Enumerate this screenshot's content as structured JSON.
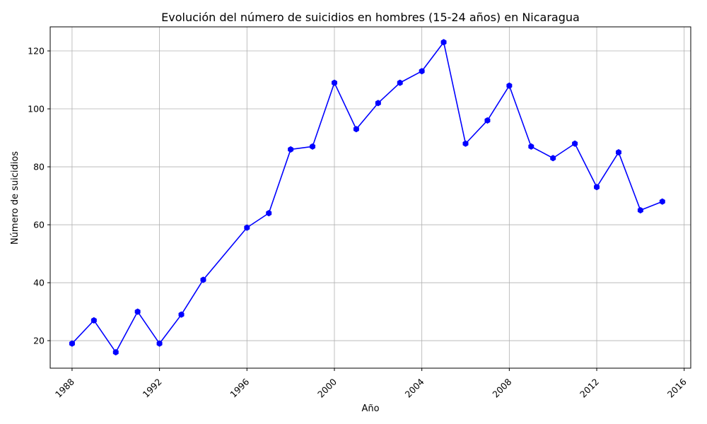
{
  "chart_data": {
    "type": "line",
    "title": "Evolución del número de suicidios en hombres (15-24 años) en Nicaragua",
    "xlabel": "Año",
    "ylabel": "Número de suicidios",
    "xlim": [
      1987.0,
      2016.3
    ],
    "ylim": [
      10.5,
      128.3
    ],
    "x_ticks": [
      1988,
      1992,
      1996,
      2000,
      2004,
      2008,
      2012,
      2016
    ],
    "y_ticks": [
      20,
      40,
      60,
      80,
      100,
      120
    ],
    "grid": true,
    "line_color": "#0000ff",
    "points": [
      {
        "x": 1988,
        "y": 19
      },
      {
        "x": 1989,
        "y": 27
      },
      {
        "x": 1990,
        "y": 16
      },
      {
        "x": 1991,
        "y": 30
      },
      {
        "x": 1992,
        "y": 19
      },
      {
        "x": 1993,
        "y": 29
      },
      {
        "x": 1994,
        "y": 41
      },
      {
        "x": 1996,
        "y": 59
      },
      {
        "x": 1997,
        "y": 64
      },
      {
        "x": 1998,
        "y": 86
      },
      {
        "x": 1999,
        "y": 87
      },
      {
        "x": 2000,
        "y": 109
      },
      {
        "x": 2001,
        "y": 93
      },
      {
        "x": 2002,
        "y": 102
      },
      {
        "x": 2003,
        "y": 109
      },
      {
        "x": 2004,
        "y": 113
      },
      {
        "x": 2005,
        "y": 123
      },
      {
        "x": 2006,
        "y": 88
      },
      {
        "x": 2007,
        "y": 96
      },
      {
        "x": 2008,
        "y": 108
      },
      {
        "x": 2009,
        "y": 87
      },
      {
        "x": 2010,
        "y": 83
      },
      {
        "x": 2011,
        "y": 88
      },
      {
        "x": 2012,
        "y": 73
      },
      {
        "x": 2013,
        "y": 85
      },
      {
        "x": 2014,
        "y": 65
      },
      {
        "x": 2015,
        "y": 68
      }
    ]
  }
}
